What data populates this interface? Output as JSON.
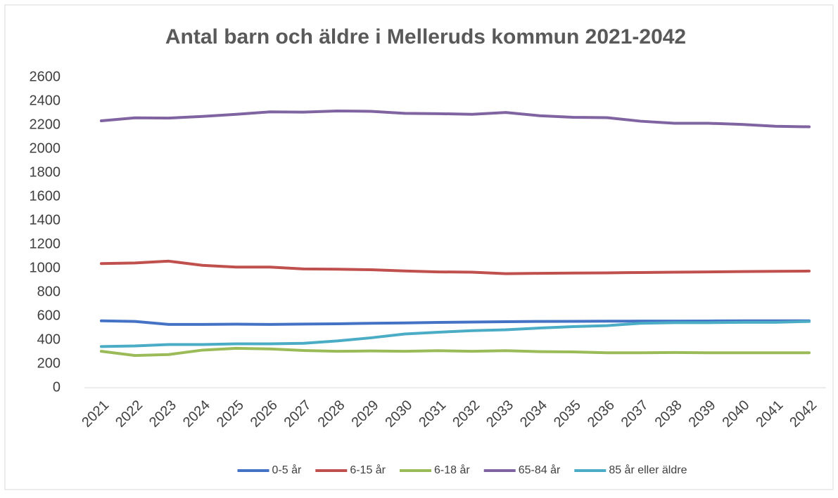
{
  "chart_data": {
    "type": "line",
    "title": "Antal barn och äldre i Melleruds kommun 2021-2042",
    "categories": [
      "2021",
      "2022",
      "2023",
      "2024",
      "2025",
      "2026",
      "2027",
      "2028",
      "2029",
      "2030",
      "2031",
      "2032",
      "2033",
      "2034",
      "2035",
      "2036",
      "2037",
      "2038",
      "2039",
      "2040",
      "2041",
      "2042"
    ],
    "series": [
      {
        "name": "0-5 år",
        "color": "#4472c4",
        "values": [
          560,
          555,
          530,
          530,
          532,
          530,
          533,
          535,
          540,
          543,
          547,
          550,
          553,
          555,
          556,
          557,
          558,
          558,
          559,
          560,
          560,
          560
        ]
      },
      {
        "name": "6-15 år",
        "color": "#c0504d",
        "values": [
          1040,
          1045,
          1060,
          1025,
          1010,
          1010,
          995,
          993,
          988,
          978,
          970,
          968,
          955,
          958,
          960,
          962,
          965,
          968,
          970,
          973,
          975,
          977
        ]
      },
      {
        "name": "6-18 år",
        "color": "#9bbb59",
        "values": [
          305,
          270,
          278,
          315,
          330,
          325,
          312,
          305,
          308,
          305,
          310,
          305,
          310,
          302,
          300,
          293,
          293,
          295,
          293,
          293,
          293,
          293
        ]
      },
      {
        "name": "65-84 år",
        "color": "#8064a2",
        "values": [
          2235,
          2260,
          2258,
          2272,
          2290,
          2310,
          2308,
          2318,
          2315,
          2298,
          2295,
          2290,
          2305,
          2278,
          2265,
          2262,
          2232,
          2215,
          2215,
          2205,
          2190,
          2185
        ]
      },
      {
        "name": "85 år eller äldre",
        "color": "#4bacc6",
        "values": [
          345,
          350,
          362,
          362,
          368,
          368,
          372,
          392,
          418,
          450,
          465,
          478,
          485,
          500,
          512,
          520,
          540,
          545,
          545,
          548,
          548,
          555
        ]
      }
    ],
    "ylim": [
      0,
      2600
    ],
    "yticks": [
      0,
      200,
      400,
      600,
      800,
      1000,
      1200,
      1400,
      1600,
      1800,
      2000,
      2200,
      2400,
      2600
    ],
    "grid": false,
    "legend": "bottom"
  }
}
